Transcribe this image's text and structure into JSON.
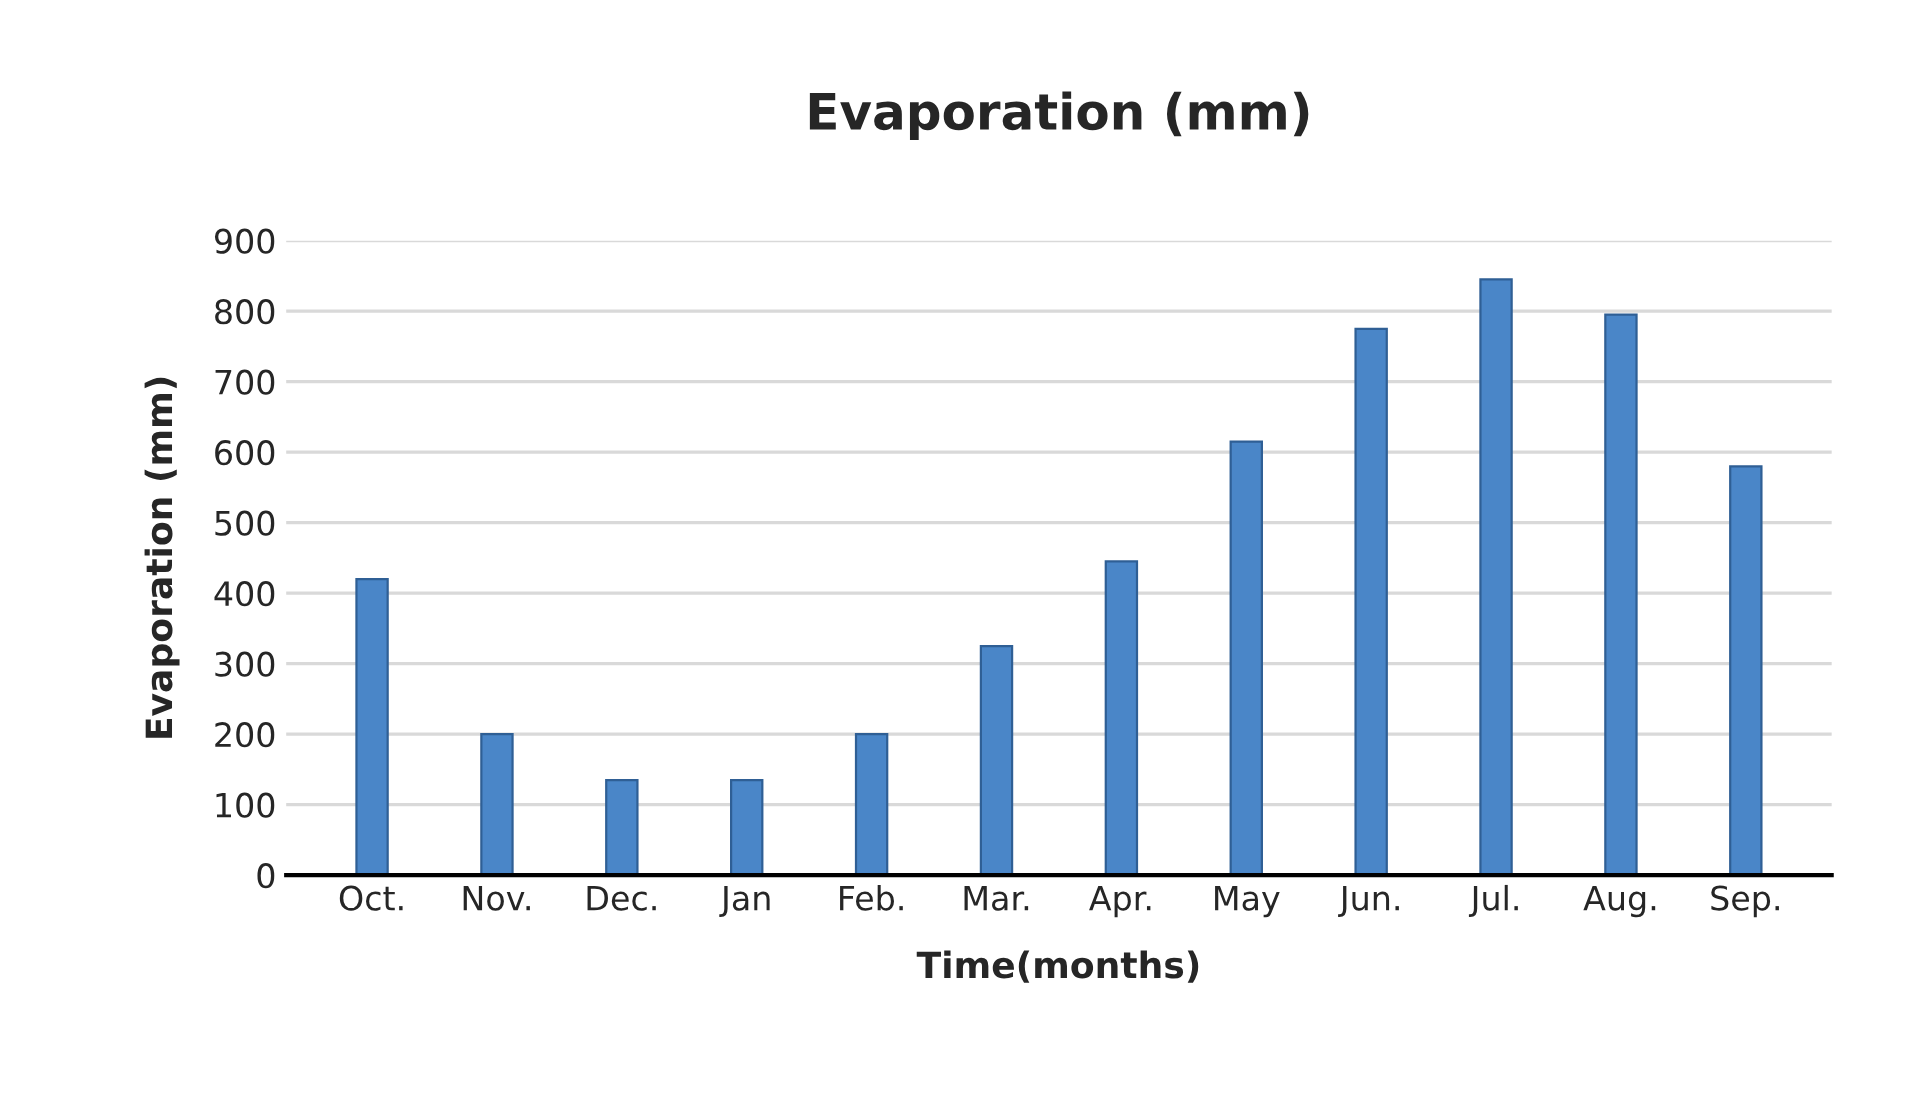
{
  "chart_data": {
    "type": "bar",
    "title": "Evaporation (mm)",
    "xlabel": "Time(months)",
    "ylabel": "Evaporation (mm)",
    "categories": [
      "Oct.",
      "Nov.",
      "Dec.",
      "Jan",
      "Feb.",
      "Mar.",
      "Apr.",
      "May",
      "Jun.",
      "Jul.",
      "Aug.",
      "Sep."
    ],
    "series": [
      {
        "color": "#4a86c8",
        "values": [
          420,
          200,
          135,
          135,
          200,
          325,
          445,
          615,
          775,
          845,
          795,
          580
        ]
      }
    ],
    "ylim": [
      0,
      900
    ],
    "yticks": [
      0,
      100,
      200,
      300,
      400,
      500,
      600,
      700,
      800,
      900
    ],
    "grid": "y",
    "legend": false
  }
}
